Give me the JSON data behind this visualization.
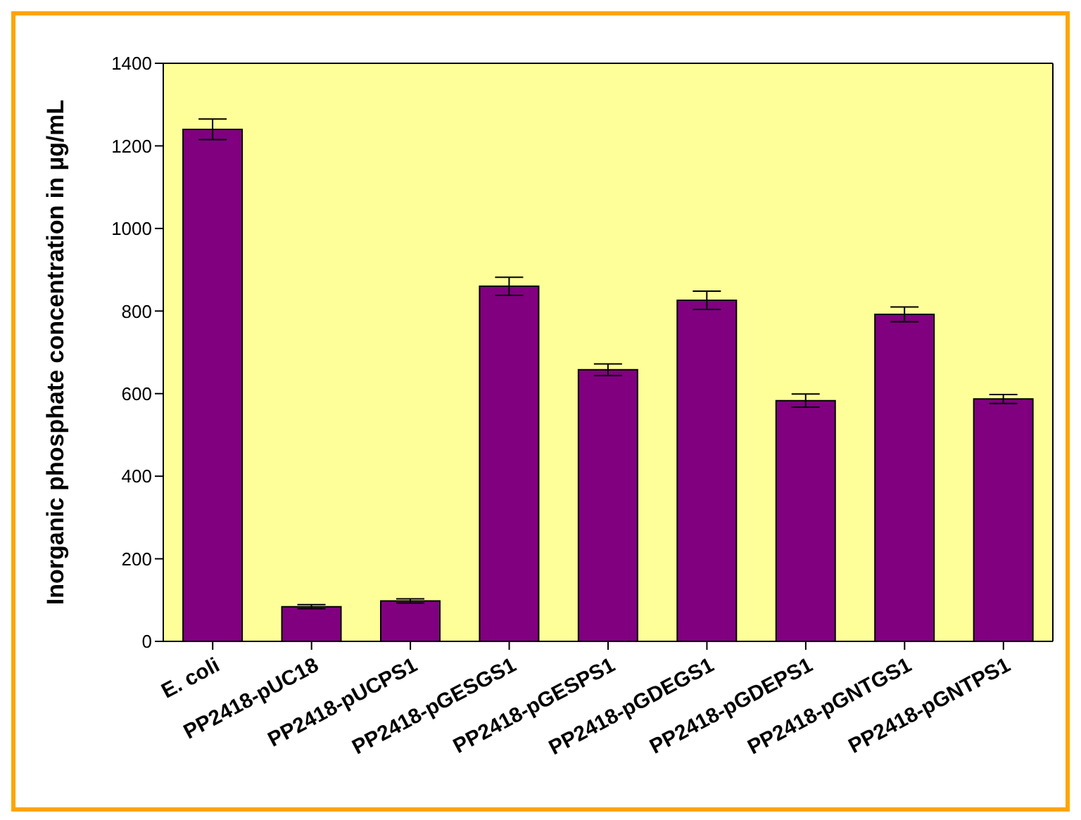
{
  "chart_data": {
    "type": "bar",
    "ylabel": "Inorganic phosphate concentration in µg/mL",
    "categories": [
      "E. coli",
      "PP2418-pUC18",
      "PP2418-pUCPS1",
      "PP2418-pGESGS1",
      "PP2418-pGESPS1",
      "PP2418-pGDEGS1",
      "PP2418-pGDEPS1",
      "PP2418-pGNTGS1",
      "PP2418-pGNTPS1"
    ],
    "values": [
      1240,
      84,
      98,
      860,
      658,
      826,
      583,
      792,
      587
    ],
    "errors": [
      25,
      5,
      5,
      22,
      14,
      22,
      16,
      18,
      11
    ],
    "color": "#800080",
    "ylim": [
      0,
      1400
    ],
    "yticks": [
      0,
      200,
      400,
      600,
      800,
      1000,
      1200,
      1400
    ],
    "legend": false
  }
}
